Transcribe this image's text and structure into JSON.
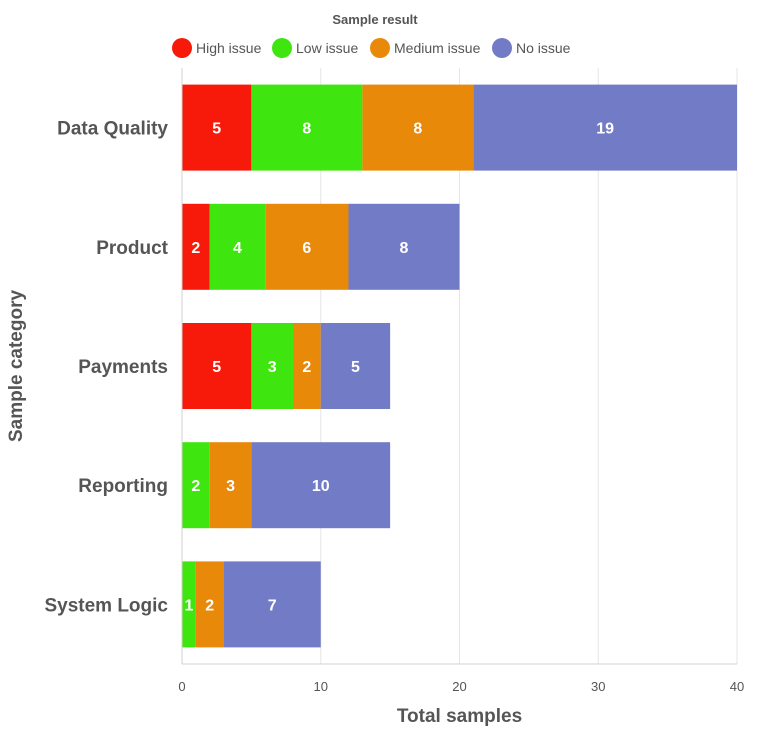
{
  "chart_data": {
    "type": "bar",
    "orientation": "horizontal",
    "stacked": true,
    "categories": [
      "Data Quality",
      "Product",
      "Payments",
      "Reporting",
      "System Logic"
    ],
    "series": [
      {
        "name": "High issue",
        "color": "#f71a0a",
        "values": [
          5,
          2,
          5,
          0,
          0
        ]
      },
      {
        "name": "Low issue",
        "color": "#3fe50e",
        "values": [
          8,
          4,
          3,
          2,
          1
        ]
      },
      {
        "name": "Medium issue",
        "color": "#e8890a",
        "values": [
          8,
          6,
          2,
          3,
          2
        ]
      },
      {
        "name": "No issue",
        "color": "#727bc5",
        "values": [
          19,
          8,
          5,
          10,
          7
        ]
      }
    ],
    "legend_title": "Sample result",
    "legend_position": "top",
    "xlabel": "Total samples",
    "ylabel": "Sample category",
    "xlim": [
      0,
      40
    ],
    "x_ticks": [
      0,
      10,
      20,
      30,
      40
    ],
    "grid": true
  }
}
